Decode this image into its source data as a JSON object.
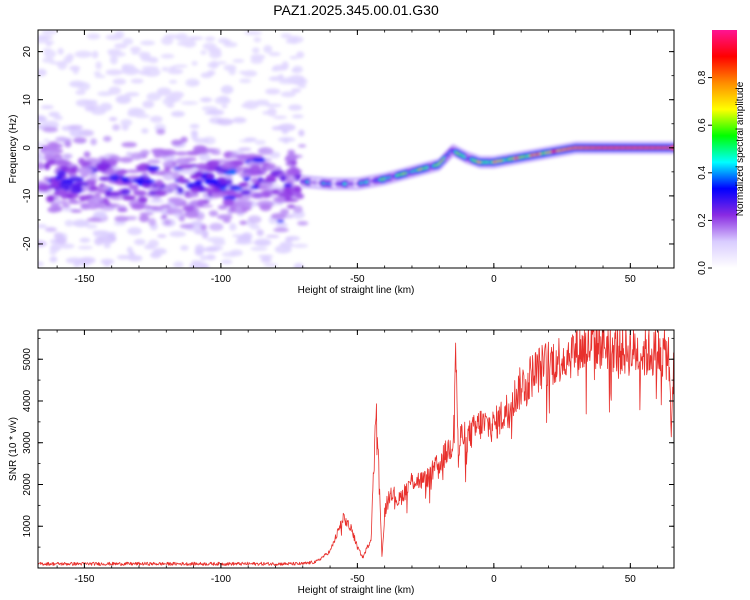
{
  "title": "PAZ1.2025.345.00.01.G30",
  "chart_data": [
    {
      "type": "heatmap",
      "xlabel": "Height of straight line (km)",
      "ylabel": "Frequency (Hz)",
      "xlim": [
        -167,
        66
      ],
      "ylim": [
        -25,
        24.5
      ],
      "xticks": [
        -150,
        -100,
        -50,
        0,
        50
      ],
      "yticks": [
        -20,
        -10,
        0,
        10,
        20
      ],
      "colorbar": {
        "label": "Normalized spectral amplitude",
        "range": [
          0,
          1
        ],
        "ticks": [
          0.0,
          0.2,
          0.4,
          0.6,
          0.8
        ],
        "colormap": [
          "#ffffff",
          "#d9ccff",
          "#8a2be2",
          "#0000ff",
          "#00ffff",
          "#00ff00",
          "#ffff00",
          "#ff8c00",
          "#ff0000",
          "#ff1493"
        ]
      },
      "ridge": {
        "x": [
          -70,
          -60,
          -50,
          -40,
          -30,
          -20,
          -15,
          -10,
          -5,
          0,
          10,
          20,
          30,
          40,
          50,
          66
        ],
        "y": [
          -7,
          -7.5,
          -7.5,
          -6.5,
          -5,
          -3.5,
          -0.5,
          -2,
          -3,
          -3,
          -2,
          -1,
          0,
          0,
          0,
          0
        ],
        "amplitude": [
          0.3,
          0.35,
          0.35,
          0.5,
          0.6,
          0.6,
          0.5,
          0.55,
          0.65,
          0.7,
          0.75,
          0.85,
          0.95,
          1.0,
          1.0,
          1.0
        ]
      },
      "noise": {
        "x_range": [
          -167,
          -70
        ],
        "freq_center": -7,
        "note": "scattered low-amplitude spectral energy"
      }
    },
    {
      "type": "line",
      "xlabel": "Height of straight line (km)",
      "ylabel": "SNR (10 * v/v)",
      "xlim": [
        -167,
        66
      ],
      "ylim": [
        0,
        5700
      ],
      "xticks": [
        -150,
        -100,
        -50,
        0,
        50
      ],
      "yticks": [
        1000,
        2000,
        3000,
        4000,
        5000
      ],
      "color": "#e8302c",
      "series": [
        {
          "x": [
            -167,
            -150,
            -120,
            -100,
            -80,
            -70,
            -65,
            -60,
            -55,
            -52,
            -50,
            -48,
            -45,
            -43,
            -42,
            -41,
            -40,
            -38,
            -35,
            -30,
            -25,
            -20,
            -15,
            -14,
            -13,
            -12,
            -10,
            -5,
            0,
            5,
            10,
            15,
            20,
            25,
            30,
            35,
            40,
            45,
            50,
            55,
            60,
            64,
            65,
            66
          ],
          "y": [
            100,
            100,
            100,
            100,
            100,
            100,
            150,
            400,
            1200,
            900,
            500,
            250,
            700,
            4050,
            2000,
            300,
            1300,
            1900,
            1600,
            2100,
            2100,
            2500,
            3000,
            5450,
            2600,
            3200,
            3100,
            3450,
            3400,
            3800,
            4350,
            4700,
            4900,
            5050,
            5200,
            5300,
            5400,
            5250,
            5200,
            5150,
            5150,
            5100,
            3200,
            5100
          ]
        }
      ]
    }
  ]
}
